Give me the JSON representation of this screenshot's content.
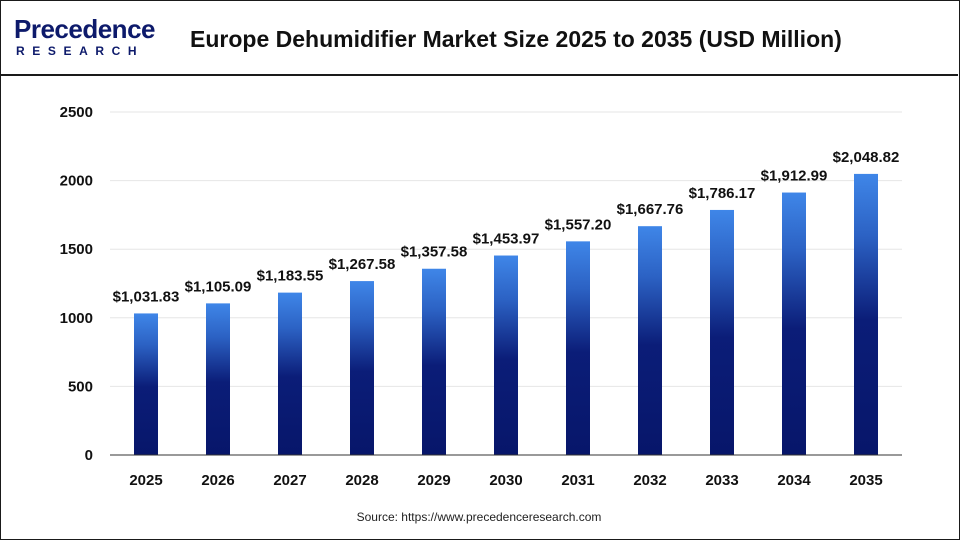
{
  "brand": {
    "logo_main": "Precedence",
    "logo_sub": "RESEARCH"
  },
  "colors": {
    "bar_top": "#3f86e8",
    "bar_bottom": "#07166a",
    "text": "#111111",
    "grid": "#e6e6e6"
  },
  "chart_data": {
    "type": "bar",
    "title": "Europe Dehumidifier Market Size 2025 to 2035 (USD Million)",
    "xlabel": "",
    "ylabel": "",
    "categories": [
      "2025",
      "2026",
      "2027",
      "2028",
      "2029",
      "2030",
      "2031",
      "2032",
      "2033",
      "2034",
      "2035"
    ],
    "values": [
      1031.83,
      1105.09,
      1183.55,
      1267.58,
      1357.58,
      1453.97,
      1557.2,
      1667.76,
      1786.17,
      1912.99,
      2048.82
    ],
    "data_labels": [
      "$1,031.83",
      "$1,105.09",
      "$1,183.55",
      "$1,267.58",
      "$1,357.58",
      "$1,453.97",
      "$1,557.20",
      "$1,667.76",
      "$1,786.17",
      "$1,912.99",
      "$2,048.82"
    ],
    "ylim": [
      0,
      2500
    ],
    "yticks": [
      0,
      500,
      1000,
      1500,
      2000,
      2500
    ],
    "grid": true,
    "legend": "none"
  },
  "source": "Source: https://www.precedenceresearch.com"
}
